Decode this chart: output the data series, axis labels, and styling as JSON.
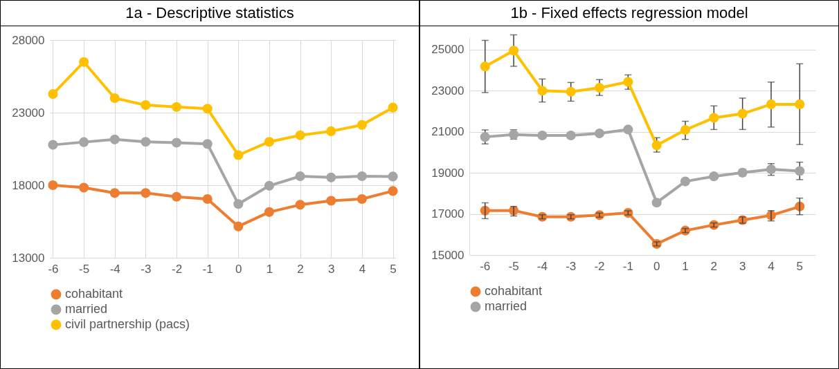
{
  "chart_data": [
    {
      "type": "line",
      "title": "1a - Descriptive statistics",
      "categories": [
        "-6",
        "-5",
        "-4",
        "-3",
        "-2",
        "-1",
        "0",
        "1",
        "2",
        "3",
        "4",
        "5"
      ],
      "ylim": [
        13000,
        28000
      ],
      "yticks": [
        13000,
        18000,
        23000,
        28000
      ],
      "grid": true,
      "legend": "bottom",
      "marker": "circle",
      "series": [
        {
          "name": "cohabitant",
          "color": "#ed7d31",
          "values": [
            18000,
            17830,
            17460,
            17460,
            17200,
            17050,
            15160,
            16150,
            16650,
            16930,
            17050,
            17600
          ]
        },
        {
          "name": "married",
          "color": "#a5a5a5",
          "values": [
            20780,
            20970,
            21150,
            20990,
            20930,
            20840,
            16700,
            17960,
            18620,
            18530,
            18620,
            18600
          ]
        },
        {
          "name": "civil partnership (pacs)",
          "color": "#ffc000",
          "values": [
            24280,
            26490,
            24000,
            23520,
            23390,
            23270,
            20070,
            20990,
            21440,
            21720,
            22150,
            23350
          ]
        }
      ]
    },
    {
      "type": "line",
      "title": "1b - Fixed effects regression model",
      "categories": [
        "-6",
        "-5",
        "-4",
        "-3",
        "-2",
        "-1",
        "0",
        "1",
        "2",
        "3",
        "4",
        "5"
      ],
      "ylim": [
        15000,
        25600
      ],
      "yticks": [
        15000,
        17000,
        19000,
        21000,
        23000,
        25000
      ],
      "grid": "y",
      "legend": "bottom",
      "marker": "circle",
      "series": [
        {
          "name": "cohabitant",
          "color": "#ed7d31",
          "values": [
            17160,
            17160,
            16860,
            16860,
            16940,
            17050,
            15540,
            16190,
            16460,
            16700,
            16930,
            17360
          ],
          "errors": [
            [
              16770,
              17540
            ],
            [
              16900,
              17360
            ],
            [
              16760,
              16960
            ],
            [
              16760,
              16960
            ],
            [
              16840,
              17040
            ],
            [
              16950,
              17150
            ],
            [
              15440,
              15640
            ],
            [
              16090,
              16290
            ],
            [
              16360,
              16560
            ],
            [
              16550,
              16850
            ],
            [
              16660,
              17160
            ],
            [
              16960,
              17770
            ]
          ]
        },
        {
          "name": "married",
          "color": "#a5a5a5",
          "values": [
            20750,
            20860,
            20820,
            20820,
            20920,
            21110,
            17550,
            18580,
            18830,
            19010,
            19170,
            19090
          ],
          "errors": [
            [
              20410,
              21090
            ],
            [
              20640,
              21100
            ],
            null,
            null,
            null,
            null,
            null,
            [
              18480,
              18680
            ],
            null,
            [
              18850,
              19180
            ],
            [
              18880,
              19450
            ],
            [
              18670,
              19520
            ]
          ]
        },
        {
          "color": "#ffc000",
          "values": [
            24180,
            24950,
            23000,
            22950,
            23140,
            23430,
            20340,
            21090,
            21680,
            21880,
            22340,
            22340
          ],
          "errors": [
            [
              22910,
              25450
            ],
            [
              24190,
              25720
            ],
            [
              22450,
              23570
            ],
            [
              22490,
              23400
            ],
            [
              22770,
              23540
            ],
            [
              23070,
              23770
            ],
            [
              20010,
              20710
            ],
            [
              20630,
              21510
            ],
            [
              21110,
              22260
            ],
            [
              21110,
              22640
            ],
            [
              21230,
              23420
            ],
            [
              20380,
              24310
            ]
          ]
        }
      ]
    }
  ]
}
